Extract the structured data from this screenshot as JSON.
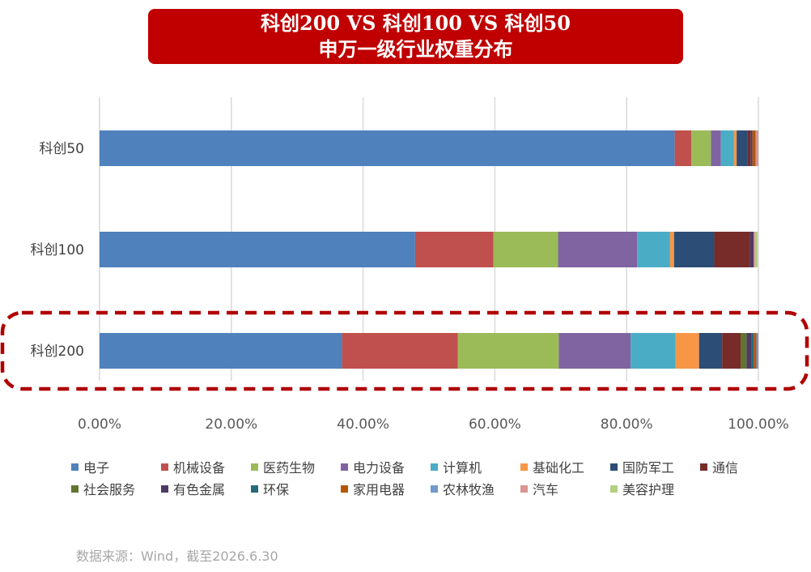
{
  "title": {
    "line1": "科创200 VS 科创100 VS 科创50",
    "line2": "申万一级行业权重分布"
  },
  "source": "数据来源：Wind，截至2026.6.30",
  "chart_data": {
    "type": "bar",
    "orientation": "horizontal",
    "stacked": true,
    "categories": [
      "科创50",
      "科创100",
      "科创200"
    ],
    "highlighted_category": "科创200",
    "xlim": [
      0,
      100
    ],
    "x_ticks": [
      "0.00%",
      "20.00%",
      "40.00%",
      "60.00%",
      "80.00%",
      "100.00%"
    ],
    "grid": true,
    "legend_position": "bottom",
    "series": [
      {
        "name": "电子",
        "color": "#4f81bd",
        "values": [
          87.3,
          47.9,
          36.8
        ]
      },
      {
        "name": "机械设备",
        "color": "#c0504d",
        "values": [
          2.5,
          11.9,
          17.6
        ]
      },
      {
        "name": "医药生物",
        "color": "#9bbb59",
        "values": [
          3.0,
          9.8,
          15.3
        ]
      },
      {
        "name": "电力设备",
        "color": "#8064a2",
        "values": [
          1.5,
          12.0,
          10.9
        ]
      },
      {
        "name": "计算机",
        "color": "#4bacc6",
        "values": [
          2.0,
          5.0,
          6.8
        ]
      },
      {
        "name": "基础化工",
        "color": "#f79646",
        "values": [
          0.4,
          0.6,
          3.6
        ]
      },
      {
        "name": "国防军工",
        "color": "#2c4d75",
        "values": [
          1.6,
          6.1,
          3.5
        ]
      },
      {
        "name": "通信",
        "color": "#772c2a",
        "values": [
          0.5,
          5.4,
          2.8
        ]
      },
      {
        "name": "社会服务",
        "color": "#5f7530",
        "values": [
          0.0,
          0.0,
          0.9
        ]
      },
      {
        "name": "有色金属",
        "color": "#4d3b62",
        "values": [
          0.3,
          0.6,
          0.7
        ]
      },
      {
        "name": "环保",
        "color": "#276a7c",
        "values": [
          0.0,
          0.0,
          0.4
        ]
      },
      {
        "name": "家用电器",
        "color": "#b65708",
        "values": [
          0.5,
          0.0,
          0.4
        ]
      },
      {
        "name": "农林牧渔",
        "color": "#729aca",
        "values": [
          0.0,
          0.0,
          0.3
        ]
      },
      {
        "name": "汽车",
        "color": "#d99694",
        "values": [
          0.4,
          0.2,
          0.0
        ]
      },
      {
        "name": "美容护理",
        "color": "#b3cf82",
        "values": [
          0.0,
          0.4,
          0.0
        ]
      }
    ]
  }
}
